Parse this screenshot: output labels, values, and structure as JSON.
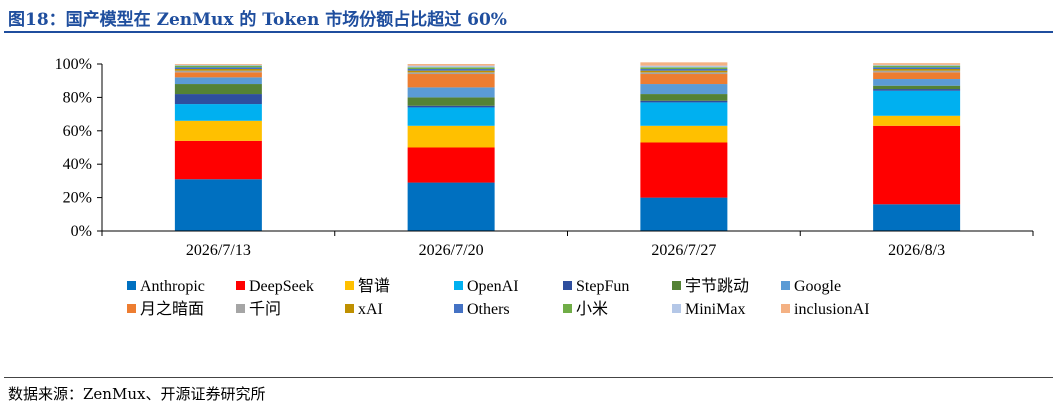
{
  "title": "图18：国产模型在 ZenMux 的 Token 市场份额占比超过 60%",
  "source": "数据来源：ZenMux、开源证券研究所",
  "colors": {
    "title": "#1f4e9e",
    "series": {
      "Anthropic": "#0070c0",
      "DeepSeek": "#ff0000",
      "智谱": "#ffc000",
      "OpenAI": "#00b0f0",
      "StepFun": "#2e4e9e",
      "宇节跳动": "#548235",
      "Google": "#5b9bd5",
      "月之暗面": "#ed7d31",
      "千问": "#a5a5a5",
      "xAI": "#bf9000",
      "Others": "#4472c4",
      "小米": "#70ad47",
      "MiniMax": "#b4c7e7",
      "inclusionAI": "#f4b183"
    }
  },
  "chart_data": {
    "type": "bar",
    "stacked": true,
    "categories": [
      "2026/7/13",
      "2026/7/20",
      "2026/7/27",
      "2026/8/3"
    ],
    "yticks": [
      "0%",
      "20%",
      "40%",
      "60%",
      "80%",
      "100%"
    ],
    "ylim": [
      0,
      100
    ],
    "grid": false,
    "legend_position": "bottom",
    "series": [
      {
        "name": "Anthropic",
        "values": [
          31,
          29,
          20,
          16
        ]
      },
      {
        "name": "DeepSeek",
        "values": [
          23,
          21,
          33,
          47
        ]
      },
      {
        "name": "智谱",
        "values": [
          12,
          13,
          10,
          6
        ]
      },
      {
        "name": "OpenAI",
        "values": [
          10,
          11,
          14,
          15
        ]
      },
      {
        "name": "StepFun",
        "values": [
          6,
          1,
          1,
          1
        ]
      },
      {
        "name": "宇节跳动",
        "values": [
          6,
          5,
          4,
          2
        ]
      },
      {
        "name": "Google",
        "values": [
          4,
          6,
          6,
          4
        ]
      },
      {
        "name": "月之暗面",
        "values": [
          3,
          8,
          6,
          4
        ]
      },
      {
        "name": "千问",
        "values": [
          1,
          1,
          1,
          1
        ]
      },
      {
        "name": "xAI",
        "values": [
          1,
          1,
          1,
          1
        ]
      },
      {
        "name": "Others",
        "values": [
          1,
          1,
          1,
          1
        ]
      },
      {
        "name": "小米",
        "values": [
          1,
          1,
          1,
          1
        ]
      },
      {
        "name": "MiniMax",
        "values": [
          0.5,
          1,
          1,
          0.5
        ]
      },
      {
        "name": "inclusionAI",
        "values": [
          0.5,
          1,
          2,
          1
        ]
      }
    ]
  }
}
